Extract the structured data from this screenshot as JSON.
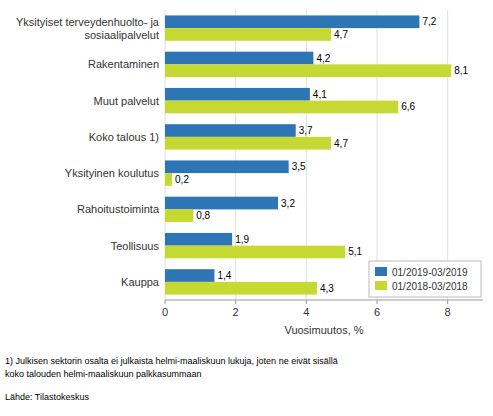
{
  "chart_data": {
    "type": "bar",
    "orientation": "horizontal",
    "categories": [
      "Yksityiset terveydenhuolto- ja\nsosiaalipalvelut",
      "Rakentaminen",
      "Muut palvelut",
      "Koko talous 1)",
      "Yksityinen koulutus",
      "Rahoitustoiminta",
      "Teollisuus",
      "Kauppa"
    ],
    "series": [
      {
        "name": "01/2019-03/2019",
        "color": "#2E75B6",
        "values": [
          7.2,
          4.2,
          4.1,
          3.7,
          3.5,
          3.2,
          1.9,
          1.4
        ],
        "value_labels": [
          "7,2",
          "4,2",
          "4,1",
          "3,7",
          "3,5",
          "3,2",
          "1,9",
          "1,4"
        ]
      },
      {
        "name": "01/2018-03/2018",
        "color": "#C6D932",
        "values": [
          4.7,
          8.1,
          6.6,
          4.7,
          0.2,
          0.8,
          5.1,
          4.3
        ],
        "value_labels": [
          "4,7",
          "8,1",
          "6,6",
          "4,7",
          "0,2",
          "0,8",
          "5,1",
          "4,3"
        ]
      }
    ],
    "xlabel": "Vuosimuutos, %",
    "xlim": [
      0,
      9
    ],
    "xticks": [
      0,
      2,
      4,
      6,
      8
    ],
    "grid": true,
    "legend": "lower right",
    "data_labels": true,
    "annotations": [
      "1) Julkisen sektorin osalta ei julkaista helmi-maaliskuun lukuja, joten ne eivät sisällä",
      "koko talouden helmi-maaliskuun palkkasummaan",
      "Lähde: Tilastokeskus"
    ]
  }
}
